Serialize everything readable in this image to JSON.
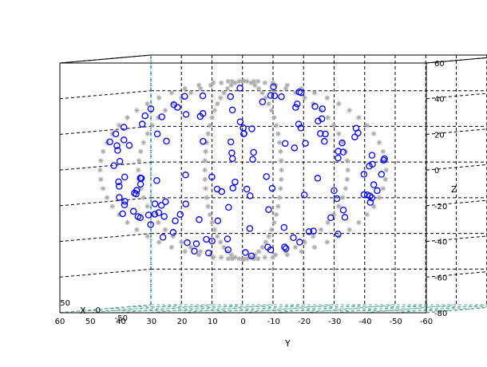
{
  "chart_data": {
    "type": "scatter",
    "title": "",
    "xlabel": "X",
    "ylabel": "Y",
    "zlabel": "Z",
    "xlim": [
      -60,
      60
    ],
    "ylim": [
      -60,
      60
    ],
    "zlim": [
      -80,
      60
    ],
    "grid": true,
    "x_ticks": [
      "50",
      "0",
      "-50"
    ],
    "y_ticks": [
      "60",
      "50",
      "40",
      "30",
      "20",
      "10",
      "0",
      "-10",
      "-20",
      "-30",
      "-40",
      "-50",
      "-60"
    ],
    "z_ticks": [
      "60",
      "40",
      "20",
      "0",
      "-20",
      "-40",
      "-60",
      "-80"
    ],
    "series": [
      {
        "marker": "asterisk",
        "color": "#aaaaaa",
        "shape": "sphere-meridians",
        "radius": 50,
        "meridian_longitudes": [
          -75,
          -45,
          -15,
          15,
          45,
          75
        ],
        "points_per_meridian": 30
      },
      {
        "marker": "circle",
        "color": "#0000ff",
        "shape": "random-in-sphere",
        "radius": 50,
        "count": 150
      }
    ]
  }
}
